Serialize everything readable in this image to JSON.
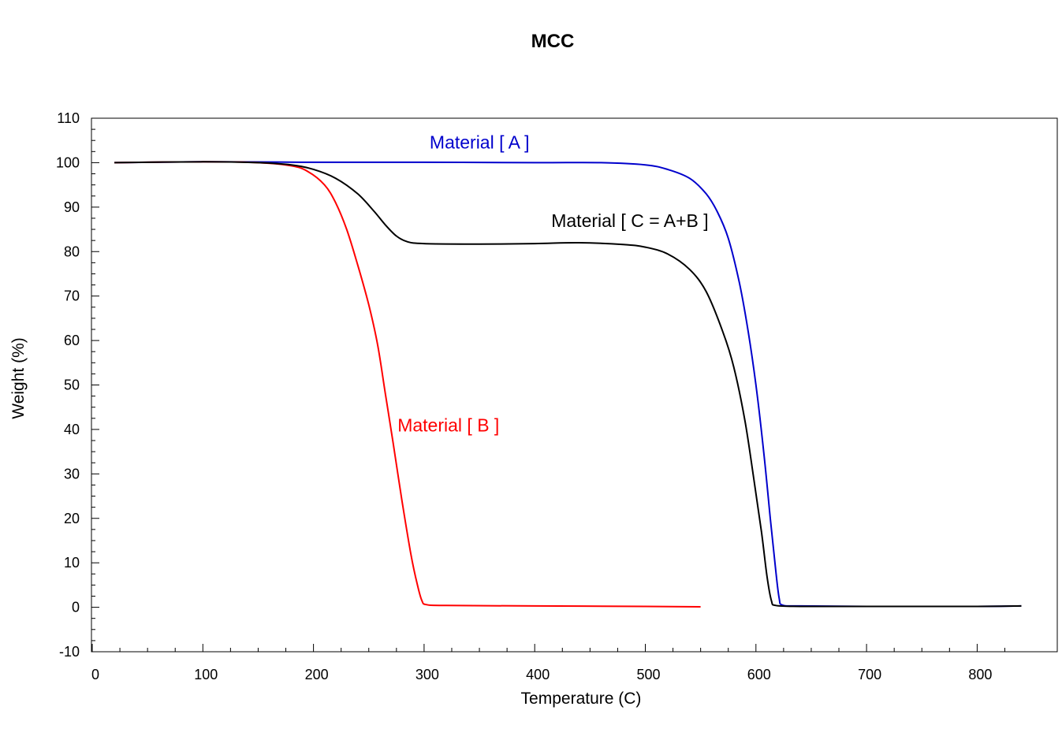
{
  "chart_data": {
    "type": "line",
    "title": "MCC",
    "xlabel": "Temperature (C)",
    "ylabel": "Weight (%)",
    "xlim": [
      0,
      870
    ],
    "ylim": [
      -10,
      110
    ],
    "xticks": [
      0,
      100,
      200,
      300,
      400,
      500,
      600,
      700,
      800
    ],
    "yticks": [
      -10,
      0,
      10,
      20,
      30,
      40,
      50,
      60,
      70,
      80,
      90,
      100,
      110
    ],
    "grid": false,
    "legend": "none",
    "series": [
      {
        "name": "Material [ A ]",
        "color": "#0000cc",
        "points": [
          [
            20,
            100
          ],
          [
            100,
            100.2
          ],
          [
            200,
            100.1
          ],
          [
            300,
            100.1
          ],
          [
            400,
            100
          ],
          [
            460,
            100
          ],
          [
            500,
            99.5
          ],
          [
            520,
            98.5
          ],
          [
            540,
            96.5
          ],
          [
            555,
            93
          ],
          [
            565,
            89
          ],
          [
            575,
            83
          ],
          [
            585,
            73
          ],
          [
            593,
            62
          ],
          [
            600,
            50
          ],
          [
            607,
            35
          ],
          [
            613,
            20
          ],
          [
            618,
            8
          ],
          [
            621,
            2
          ],
          [
            624,
            0.5
          ],
          [
            640,
            0.3
          ],
          [
            700,
            0.2
          ],
          [
            800,
            0.2
          ],
          [
            840,
            0.3
          ]
        ]
      },
      {
        "name": "Material [ B ]",
        "color": "#ff0000",
        "points": [
          [
            20,
            100
          ],
          [
            100,
            100.2
          ],
          [
            150,
            100
          ],
          [
            180,
            99.3
          ],
          [
            195,
            98
          ],
          [
            210,
            95
          ],
          [
            220,
            91
          ],
          [
            230,
            85
          ],
          [
            240,
            77
          ],
          [
            250,
            68
          ],
          [
            258,
            59
          ],
          [
            265,
            48
          ],
          [
            272,
            37
          ],
          [
            280,
            24
          ],
          [
            288,
            12
          ],
          [
            294,
            5
          ],
          [
            298,
            1.5
          ],
          [
            302,
            0.6
          ],
          [
            320,
            0.4
          ],
          [
            400,
            0.3
          ],
          [
            500,
            0.2
          ],
          [
            550,
            0.1
          ]
        ]
      },
      {
        "name": "Material [ C = A+B ]",
        "color": "#000000",
        "points": [
          [
            20,
            100
          ],
          [
            100,
            100.2
          ],
          [
            150,
            100
          ],
          [
            180,
            99.5
          ],
          [
            200,
            98.5
          ],
          [
            220,
            96.5
          ],
          [
            240,
            93
          ],
          [
            255,
            89
          ],
          [
            265,
            86
          ],
          [
            275,
            83.5
          ],
          [
            285,
            82.2
          ],
          [
            300,
            81.8
          ],
          [
            350,
            81.7
          ],
          [
            400,
            81.8
          ],
          [
            440,
            82
          ],
          [
            480,
            81.6
          ],
          [
            500,
            81
          ],
          [
            520,
            79.5
          ],
          [
            540,
            76
          ],
          [
            555,
            71
          ],
          [
            570,
            62
          ],
          [
            580,
            54
          ],
          [
            590,
            42
          ],
          [
            598,
            29
          ],
          [
            605,
            17
          ],
          [
            610,
            7
          ],
          [
            614,
            1.5
          ],
          [
            618,
            0.4
          ],
          [
            640,
            0.2
          ],
          [
            700,
            0.2
          ],
          [
            800,
            0.2
          ],
          [
            840,
            0.3
          ]
        ]
      }
    ],
    "annotations": [
      {
        "text": "Material [ A ]",
        "x": 305,
        "y": 103.2,
        "color": "#0000cc"
      },
      {
        "text": "Material [ C = A+B ]",
        "x": 415,
        "y": 85.5,
        "color": "#000000"
      },
      {
        "text": "Material [ B ]",
        "x": 276,
        "y": 39.5,
        "color": "#ff0000"
      }
    ]
  }
}
